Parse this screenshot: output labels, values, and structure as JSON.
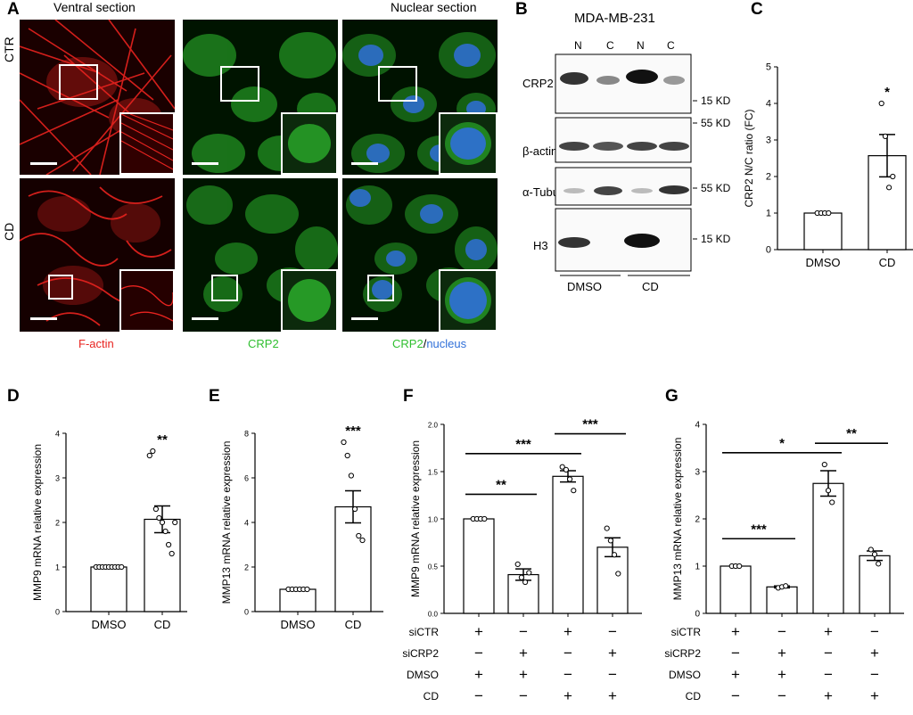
{
  "panels": {
    "A": {
      "letter": "A",
      "ventral_title": "Ventral section",
      "nuclear_title": "Nuclear section",
      "row_labels": [
        "CTR",
        "CD"
      ],
      "channel_labels": {
        "factin": "F-actin",
        "crp2": "CRP2",
        "merge_crp2": "CRP2",
        "merge_sep": "/",
        "merge_nucleus": "nucleus"
      },
      "colors": {
        "factin": "#e8231f",
        "crp2": "#2fbf2f",
        "nucleus": "#2f6fd8"
      }
    },
    "B": {
      "letter": "B",
      "cell_line": "MDA-MB-231",
      "lanes": [
        "N",
        "C",
        "N",
        "C"
      ],
      "blots": [
        "CRP2",
        "β-actin",
        "α-Tubulin",
        "H3"
      ],
      "markers": [
        "15 KD",
        "55 KD",
        "55 KD",
        "15 KD"
      ],
      "groups": [
        "DMSO",
        "CD"
      ]
    },
    "C": {
      "letter": "C"
    },
    "D": {
      "letter": "D"
    },
    "E": {
      "letter": "E"
    },
    "F": {
      "letter": "F",
      "row_labels": [
        "siCTR",
        "siCRP2",
        "DMSO",
        "CD"
      ],
      "matrix": [
        [
          "+",
          "−",
          "+",
          "−"
        ],
        [
          "−",
          "+",
          "−",
          "+"
        ],
        [
          "+",
          "+",
          "−",
          "−"
        ],
        [
          "−",
          "−",
          "+",
          "+"
        ]
      ]
    },
    "G": {
      "letter": "G",
      "row_labels": [
        "siCTR",
        "siCRP2",
        "DMSO",
        "CD"
      ],
      "matrix": [
        [
          "+",
          "−",
          "+",
          "−"
        ],
        [
          "−",
          "+",
          "−",
          "+"
        ],
        [
          "+",
          "+",
          "−",
          "−"
        ],
        [
          "−",
          "−",
          "+",
          "+"
        ]
      ]
    }
  },
  "chart_data": [
    {
      "id": "C",
      "type": "bar",
      "categories": [
        "DMSO",
        "CD"
      ],
      "values": [
        1.0,
        2.57
      ],
      "errors": [
        0.0,
        0.58
      ],
      "points": [
        [
          1,
          1,
          1,
          1
        ],
        [
          4.0,
          3.1,
          1.7,
          2.0
        ]
      ],
      "ylabel": "CRP2 N/C ratio (FC)",
      "ylim": [
        0,
        5
      ],
      "yticks": [
        0,
        1,
        2,
        3,
        4,
        5
      ],
      "significance": [
        {
          "bar": 1,
          "label": "*"
        }
      ]
    },
    {
      "id": "D",
      "type": "bar",
      "categories": [
        "DMSO",
        "CD"
      ],
      "values": [
        1.0,
        2.07
      ],
      "errors": [
        0.0,
        0.3
      ],
      "points": [
        [
          1,
          1,
          1,
          1,
          1,
          1,
          1,
          1,
          1
        ],
        [
          3.5,
          3.6,
          2.3,
          2.1,
          2.0,
          1.8,
          1.5,
          1.3,
          2.0
        ]
      ],
      "ylabel": "MMP9 mRNA relative expression",
      "ylim": [
        0,
        4
      ],
      "yticks": [
        0,
        1,
        2,
        3,
        4
      ],
      "significance": [
        {
          "bar": 1,
          "label": "**"
        }
      ]
    },
    {
      "id": "E",
      "type": "bar",
      "categories": [
        "DMSO",
        "CD"
      ],
      "values": [
        1.0,
        4.7
      ],
      "errors": [
        0.0,
        0.72
      ],
      "points": [
        [
          1,
          1,
          1,
          1,
          1,
          1
        ],
        [
          7.6,
          7.0,
          6.1,
          4.6,
          3.4,
          3.2
        ]
      ],
      "ylabel": "MMP13 mRNA relative expression",
      "ylim": [
        0,
        8
      ],
      "yticks": [
        0,
        2,
        4,
        6,
        8
      ],
      "significance": [
        {
          "bar": 1,
          "label": "***"
        }
      ]
    },
    {
      "id": "F",
      "type": "bar",
      "categories": [
        "1",
        "2",
        "3",
        "4"
      ],
      "values": [
        1.0,
        0.41,
        1.45,
        0.7
      ],
      "errors": [
        0.0,
        0.06,
        0.06,
        0.1
      ],
      "points": [
        [
          1,
          1,
          1,
          1
        ],
        [
          0.52,
          0.38,
          0.33,
          0.43
        ],
        [
          1.55,
          1.52,
          1.42,
          1.3
        ],
        [
          0.9,
          0.77,
          0.62,
          0.42
        ]
      ],
      "ylabel": "MMP9 mRNA relative expression",
      "ylim": [
        0,
        2.0
      ],
      "yticks": [
        0.0,
        0.5,
        1.0,
        1.5,
        2.0
      ],
      "tick_labels": [
        "0.0",
        "0.5",
        "1.0",
        "1.5",
        "2.0"
      ],
      "significance": [
        {
          "from": 0,
          "to": 1,
          "y": 1.26,
          "label": "**"
        },
        {
          "from": 0,
          "to": 2,
          "y": 1.69,
          "label": "***"
        },
        {
          "from": 2,
          "to": 3,
          "y": 1.9,
          "label": "***"
        }
      ]
    },
    {
      "id": "G",
      "type": "bar",
      "categories": [
        "1",
        "2",
        "3",
        "4"
      ],
      "values": [
        1.0,
        0.56,
        2.75,
        1.22
      ],
      "errors": [
        0.0,
        0.02,
        0.27,
        0.1
      ],
      "points": [
        [
          1,
          1,
          1
        ],
        [
          0.54,
          0.56,
          0.58
        ],
        [
          3.15,
          2.6,
          2.35
        ],
        [
          1.35,
          1.25,
          1.05
        ]
      ],
      "ylabel": "MMP13 mRNA relative expression",
      "ylim": [
        0,
        4
      ],
      "yticks": [
        0,
        1,
        2,
        3,
        4
      ],
      "significance": [
        {
          "from": 0,
          "to": 1,
          "y": 1.58,
          "label": "***"
        },
        {
          "from": 0,
          "to": 2,
          "y": 3.4,
          "label": "*"
        },
        {
          "from": 2,
          "to": 3,
          "y": 3.6,
          "label": "**"
        }
      ]
    }
  ]
}
